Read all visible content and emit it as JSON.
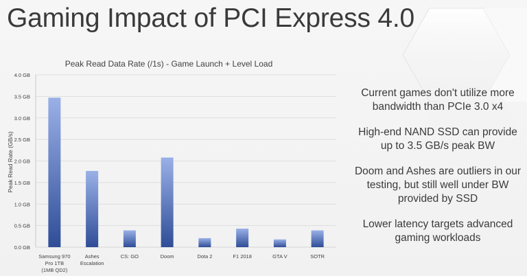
{
  "slide": {
    "title": "Gaming Impact of PCI Express 4.0"
  },
  "bullets": [
    "Current games don't utilize more bandwidth than PCIe 3.0 x4",
    "High-end NAND SSD can provide up to 3.5 GB/s peak BW",
    "Doom and Ashes are outliers in our testing, but still well under BW provided by SSD",
    "Lower latency targets advanced gaming workloads"
  ],
  "colors": {
    "bar_top": "#9ab0e7",
    "bar_bottom": "#2f4d97",
    "grid": "#d7d7d7",
    "axis": "#c8c8c8",
    "title_text": "#3a3a3a"
  },
  "chart_data": {
    "type": "bar",
    "title": "Peak Read Data Rate (/1s) - Game Launch + Level Load",
    "xlabel": "",
    "ylabel": "Peak Read Rate (GB/s)",
    "ylim": [
      0,
      4.0
    ],
    "y_ticks": [
      0,
      0.5,
      1.0,
      1.5,
      2.0,
      2.5,
      3.0,
      3.5,
      4.0
    ],
    "y_tick_labels": [
      "0.0 GB",
      "0.5 GB",
      "1.0 GB",
      "1.5 GB",
      "2.0 GB",
      "2.5 GB",
      "3.0 GB",
      "3.5 GB",
      "4.0 GB"
    ],
    "grid": true,
    "categories": [
      [
        "Samsung 970",
        "Pro 1TB",
        "(1MB QD2)"
      ],
      [
        "Ashes",
        "Escalation"
      ],
      [
        "CS: GO"
      ],
      [
        "Doom"
      ],
      [
        "Dota 2"
      ],
      [
        "F1 2018"
      ],
      [
        "GTA V"
      ],
      [
        "SOTR"
      ]
    ],
    "values": [
      3.47,
      1.77,
      0.39,
      2.08,
      0.21,
      0.43,
      0.18,
      0.39
    ]
  }
}
